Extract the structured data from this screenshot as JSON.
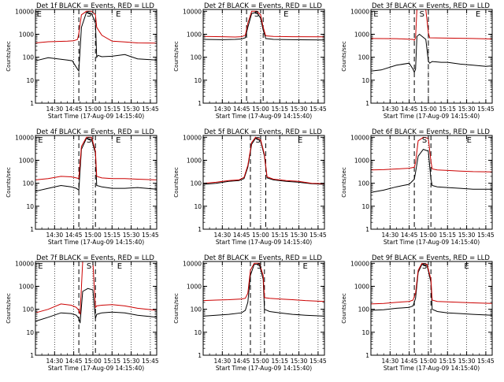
{
  "colors": {
    "events": "#000000",
    "lld": "#cc0000",
    "axis": "#000000"
  },
  "common": {
    "ylabel": "Counts/sec",
    "xlabel": "Start Time (17-Aug-09 14:15:40)",
    "x_tick_labels": [
      "14:30",
      "14:45",
      "15:00",
      "15:15",
      "15:30",
      "15:45"
    ],
    "y_tick_labels": [
      "1",
      "10",
      "100",
      "1000",
      "10000"
    ]
  },
  "chart_data": [
    {
      "type": "line",
      "title": "Det 1f BLACK = Events, RED = LLD",
      "log_y": true,
      "ylim": [
        1,
        12000
      ],
      "xlim_minutes": [
        0,
        95
      ],
      "grid_x": "dotted",
      "dashed_markers_minutes": [
        34,
        47
      ],
      "markers": [
        {
          "label": "E",
          "minute": 1
        },
        {
          "label": "S",
          "minute": 40
        },
        {
          "label": "E",
          "minute": 63
        }
      ],
      "series": [
        {
          "name": "Events",
          "x": [
            0,
            10,
            25,
            29,
            30,
            31,
            33,
            34,
            36,
            40,
            44,
            47,
            48,
            49,
            52,
            60,
            70,
            80,
            95
          ],
          "y": [
            70,
            95,
            75,
            70,
            55,
            45,
            30,
            25,
            2000,
            9000,
            8000,
            3000,
            100,
            120,
            105,
            110,
            130,
            85,
            75
          ]
        },
        {
          "name": "LLD",
          "x": [
            0,
            10,
            25,
            30,
            33,
            34,
            36,
            40,
            44,
            47,
            48,
            52,
            60,
            70,
            80,
            95
          ],
          "y": [
            420,
            470,
            500,
            520,
            600,
            1100,
            7000,
            10000,
            10000,
            7000,
            2000,
            900,
            500,
            460,
            420,
            410
          ]
        }
      ]
    },
    {
      "type": "line",
      "title": "Det 2f BLACK = Events, RED = LLD",
      "log_y": true,
      "ylim": [
        1,
        12000
      ],
      "xlim_minutes": [
        0,
        95
      ],
      "grid_x": "dotted",
      "dashed_markers_minutes": [
        34,
        47
      ],
      "markers": [
        {
          "label": "S",
          "minute": 40
        },
        {
          "label": "E",
          "minute": 63
        }
      ],
      "series": [
        {
          "name": "Events",
          "x": [
            0,
            15,
            25,
            30,
            33,
            35,
            38,
            42,
            45,
            47,
            49,
            55,
            70,
            95
          ],
          "y": [
            600,
            580,
            600,
            620,
            700,
            2000,
            8000,
            9000,
            5000,
            1500,
            650,
            600,
            580,
            560
          ]
        },
        {
          "name": "LLD",
          "x": [
            0,
            15,
            25,
            30,
            33,
            35,
            38,
            42,
            45,
            47,
            49,
            55,
            70,
            95
          ],
          "y": [
            800,
            780,
            760,
            780,
            900,
            3000,
            10000,
            10000,
            7000,
            2000,
            850,
            800,
            780,
            770
          ]
        }
      ]
    },
    {
      "type": "line",
      "title": "Det 3f BLACK = Events, RED = LLD",
      "log_y": true,
      "ylim": [
        1,
        12000
      ],
      "xlim_minutes": [
        0,
        95
      ],
      "grid_x": "dotted",
      "dashed_markers_minutes": [
        34,
        45
      ],
      "markers": [
        {
          "label": "E",
          "minute": 2
        },
        {
          "label": "S",
          "minute": 38
        },
        {
          "label": "E",
          "minute": 82
        }
      ],
      "series": [
        {
          "name": "Events",
          "x": [
            0,
            8,
            20,
            30,
            33,
            34,
            35,
            36,
            38,
            43,
            45,
            46,
            48,
            55,
            60,
            70,
            80,
            90,
            95
          ],
          "y": [
            25,
            28,
            45,
            55,
            30,
            22,
            30,
            800,
            1000,
            600,
            70,
            55,
            65,
            60,
            60,
            50,
            45,
            40,
            42
          ]
        },
        {
          "name": "LLD",
          "x": [
            0,
            20,
            33,
            34,
            35,
            36,
            43,
            45,
            46,
            60,
            80,
            95
          ],
          "y": [
            650,
            640,
            600,
            550,
            700,
            12000,
            12000,
            1200,
            700,
            680,
            650,
            620
          ]
        }
      ]
    },
    {
      "type": "line",
      "title": "Det 4f BLACK = Events, RED = LLD",
      "log_y": true,
      "ylim": [
        1,
        12000
      ],
      "xlim_minutes": [
        0,
        95
      ],
      "grid_x": "dotted",
      "dashed_markers_minutes": [
        34,
        47
      ],
      "markers": [
        {
          "label": "E",
          "minute": 2
        },
        {
          "label": "S",
          "minute": 40
        },
        {
          "label": "E",
          "minute": 63
        }
      ],
      "series": [
        {
          "name": "Events",
          "x": [
            0,
            10,
            20,
            28,
            32,
            34,
            36,
            40,
            44,
            47,
            48,
            52,
            60,
            70,
            80,
            95
          ],
          "y": [
            45,
            60,
            80,
            70,
            60,
            50,
            3000,
            9000,
            8000,
            2000,
            80,
            70,
            60,
            60,
            65,
            55
          ]
        },
        {
          "name": "LLD",
          "x": [
            0,
            10,
            20,
            28,
            32,
            34,
            36,
            40,
            44,
            47,
            48,
            52,
            60,
            70,
            80,
            95
          ],
          "y": [
            140,
            160,
            200,
            190,
            170,
            160,
            4000,
            10000,
            10000,
            2500,
            200,
            170,
            160,
            160,
            150,
            140
          ]
        }
      ]
    },
    {
      "type": "line",
      "title": "Det 5f BLACK = Events, RED = LLD",
      "log_y": true,
      "ylim": [
        1,
        12000
      ],
      "xlim_minutes": [
        0,
        95
      ],
      "grid_x": "dotted",
      "dashed_markers_minutes": [
        37,
        49
      ],
      "markers": [
        {
          "label": "S",
          "minute": 41
        },
        {
          "label": "E",
          "minute": 74
        }
      ],
      "series": [
        {
          "name": "Events",
          "x": [
            0,
            10,
            20,
            28,
            32,
            35,
            38,
            41,
            45,
            48,
            50,
            55,
            65,
            75,
            85,
            95
          ],
          "y": [
            90,
            100,
            120,
            130,
            160,
            500,
            5000,
            9000,
            7000,
            1500,
            170,
            140,
            120,
            110,
            95,
            90
          ]
        },
        {
          "name": "LLD",
          "x": [
            0,
            10,
            20,
            28,
            32,
            35,
            38,
            41,
            45,
            48,
            50,
            55,
            65,
            75,
            85,
            95
          ],
          "y": [
            100,
            110,
            130,
            140,
            180,
            600,
            6000,
            10000,
            8000,
            1800,
            190,
            150,
            130,
            120,
            100,
            95
          ]
        }
      ]
    },
    {
      "type": "line",
      "title": "Det 6f BLACK = Events, RED = LLD",
      "log_y": true,
      "ylim": [
        1,
        12000
      ],
      "xlim_minutes": [
        0,
        95
      ],
      "grid_x": "dotted",
      "dashed_markers_minutes": [
        34,
        47
      ],
      "markers": [
        {
          "label": "S",
          "minute": 40
        },
        {
          "label": "E",
          "minute": 75
        }
      ],
      "series": [
        {
          "name": "Events",
          "x": [
            0,
            10,
            20,
            30,
            34,
            35,
            37,
            41,
            45,
            47,
            48,
            52,
            60,
            70,
            80,
            95
          ],
          "y": [
            40,
            50,
            70,
            90,
            150,
            300,
            1500,
            3000,
            2500,
            150,
            80,
            70,
            65,
            60,
            55,
            55
          ]
        },
        {
          "name": "LLD",
          "x": [
            0,
            10,
            20,
            30,
            34,
            35,
            37,
            41,
            45,
            47,
            48,
            52,
            60,
            70,
            80,
            95
          ],
          "y": [
            380,
            390,
            420,
            450,
            500,
            800,
            7000,
            10000,
            9000,
            900,
            420,
            380,
            360,
            340,
            320,
            310
          ]
        }
      ]
    },
    {
      "type": "line",
      "title": "Det 7f BLACK = Events, RED = LLD",
      "log_y": true,
      "ylim": [
        1,
        12000
      ],
      "xlim_minutes": [
        0,
        95
      ],
      "grid_x": "dotted",
      "dashed_markers_minutes": [
        34,
        47
      ],
      "markers": [
        {
          "label": "E",
          "minute": 2
        },
        {
          "label": "S",
          "minute": 40
        },
        {
          "label": "E",
          "minute": 64
        }
      ],
      "series": [
        {
          "name": "Events",
          "x": [
            0,
            10,
            20,
            28,
            32,
            34,
            35,
            37,
            41,
            45,
            47,
            48,
            52,
            60,
            70,
            80,
            95
          ],
          "y": [
            30,
            45,
            70,
            65,
            55,
            40,
            25,
            600,
            800,
            700,
            40,
            60,
            70,
            75,
            70,
            55,
            45
          ]
        },
        {
          "name": "LLD",
          "x": [
            0,
            10,
            20,
            28,
            32,
            34,
            35,
            37,
            41,
            45,
            47,
            48,
            52,
            60,
            70,
            80,
            95
          ],
          "y": [
            70,
            100,
            170,
            150,
            120,
            90,
            60,
            12000,
            12000,
            12000,
            120,
            140,
            150,
            160,
            140,
            110,
            90
          ]
        }
      ]
    },
    {
      "type": "line",
      "title": "Det 8f BLACK = Events, RED = LLD",
      "log_y": true,
      "ylim": [
        1,
        12000
      ],
      "xlim_minutes": [
        0,
        95
      ],
      "grid_x": "dotted",
      "dashed_markers_minutes": [
        37,
        48
      ],
      "markers": [
        {
          "label": "S",
          "minute": 42
        },
        {
          "label": "E",
          "minute": 78
        }
      ],
      "series": [
        {
          "name": "Events",
          "x": [
            0,
            10,
            20,
            30,
            33,
            35,
            37,
            40,
            44,
            47,
            48,
            52,
            60,
            70,
            80,
            95
          ],
          "y": [
            50,
            55,
            60,
            70,
            90,
            200,
            3000,
            9000,
            9000,
            2000,
            100,
            80,
            70,
            60,
            55,
            50
          ]
        },
        {
          "name": "LLD",
          "x": [
            0,
            10,
            20,
            30,
            33,
            35,
            37,
            40,
            44,
            47,
            48,
            52,
            60,
            70,
            80,
            95
          ],
          "y": [
            240,
            250,
            260,
            280,
            300,
            500,
            5000,
            10000,
            10000,
            3000,
            320,
            300,
            280,
            260,
            240,
            220
          ]
        }
      ]
    },
    {
      "type": "line",
      "title": "Det 9f BLACK = Events, RED = LLD",
      "log_y": true,
      "ylim": [
        1,
        12000
      ],
      "xlim_minutes": [
        0,
        95
      ],
      "grid_x": "dotted",
      "dashed_markers_minutes": [
        34,
        47
      ],
      "markers": [
        {
          "label": "S",
          "minute": 40
        },
        {
          "label": "E",
          "minute": 73
        }
      ],
      "series": [
        {
          "name": "Events",
          "x": [
            0,
            10,
            20,
            30,
            33,
            35,
            37,
            40,
            44,
            47,
            48,
            52,
            60,
            70,
            80,
            95
          ],
          "y": [
            90,
            95,
            110,
            120,
            140,
            300,
            4000,
            9000,
            8000,
            1500,
            100,
            80,
            70,
            65,
            60,
            55
          ]
        },
        {
          "name": "LLD",
          "x": [
            0,
            10,
            20,
            30,
            33,
            35,
            37,
            40,
            44,
            47,
            48,
            52,
            60,
            70,
            80,
            95
          ],
          "y": [
            170,
            180,
            200,
            220,
            250,
            500,
            5000,
            10000,
            9000,
            2000,
            250,
            220,
            210,
            200,
            190,
            180
          ]
        }
      ]
    }
  ]
}
